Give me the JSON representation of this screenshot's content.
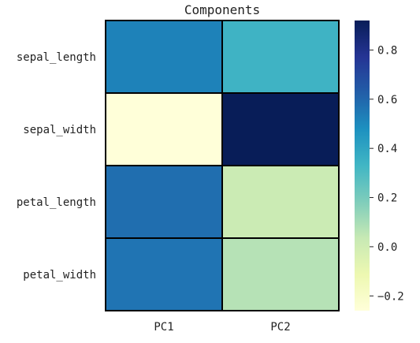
{
  "chart_data": {
    "type": "heatmap",
    "title": "Components",
    "x_categories": [
      "PC1",
      "PC2"
    ],
    "y_categories": [
      "sepal_length",
      "sepal_width",
      "petal_length",
      "petal_width"
    ],
    "values": [
      [
        0.52,
        0.34
      ],
      [
        -0.26,
        0.92
      ],
      [
        0.58,
        0.02
      ],
      [
        0.56,
        0.07
      ]
    ],
    "colormap": "YlGnBu",
    "colorbar": {
      "range": [
        -0.26,
        0.92
      ],
      "ticks": [
        -0.2,
        0.0,
        0.2,
        0.4,
        0.6,
        0.8
      ],
      "tick_labels": [
        "−0.2",
        "0.0",
        "0.2",
        "0.4",
        "0.6",
        "0.8"
      ]
    },
    "cell_border_color": "#000000"
  }
}
